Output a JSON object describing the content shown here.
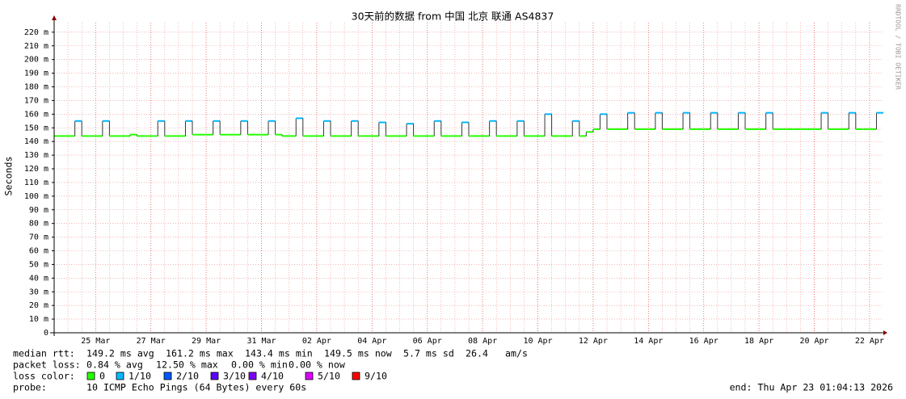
{
  "chart_data": {
    "type": "line",
    "title": "30天前的数据 from 中国 北京 联通 AS4837",
    "y_label": "Seconds",
    "categories": [
      null,
      null,
      null,
      null,
      null,
      null,
      "25 Mar",
      null,
      null,
      null,
      null,
      null,
      null,
      null,
      "27 Mar",
      null,
      null,
      null,
      null,
      null,
      null,
      null,
      "29 Mar",
      null,
      null,
      null,
      null,
      null,
      null,
      null,
      "31 Mar",
      null,
      null,
      null,
      null,
      null,
      null,
      null,
      "02 Apr",
      null,
      null,
      null,
      null,
      null,
      null,
      null,
      "04 Apr",
      null,
      null,
      null,
      null,
      null,
      null,
      null,
      "06 Apr",
      null,
      null,
      null,
      null,
      null,
      null,
      null,
      "08 Apr",
      null,
      null,
      null,
      null,
      null,
      null,
      null,
      "10 Apr",
      null,
      null,
      null,
      null,
      null,
      null,
      null,
      "12 Apr",
      null,
      null,
      null,
      null,
      null,
      null,
      null,
      "14 Apr",
      null,
      null,
      null,
      null,
      null,
      null,
      null,
      "16 Apr",
      null,
      null,
      null,
      null,
      null,
      null,
      null,
      "18 Apr",
      null,
      null,
      null,
      null,
      null,
      null,
      null,
      "20 Apr",
      null,
      null,
      null,
      null,
      null,
      null,
      null,
      "22 Apr",
      null
    ],
    "series": [
      {
        "name": "median rtt:",
        "values": [
          0.144,
          0.144,
          0.144,
          0.155,
          0.144,
          0.144,
          0.144,
          0.155,
          0.144,
          0.144,
          0.144,
          0.145,
          0.144,
          0.144,
          0.144,
          0.155,
          0.144,
          0.144,
          0.144,
          0.155,
          0.145,
          0.145,
          0.145,
          0.155,
          0.145,
          0.145,
          0.145,
          0.155,
          0.145,
          0.145,
          0.145,
          0.155,
          0.145,
          0.144,
          0.144,
          0.157,
          0.144,
          0.144,
          0.144,
          0.155,
          0.144,
          0.144,
          0.144,
          0.155,
          0.144,
          0.144,
          0.144,
          0.154,
          0.144,
          0.144,
          0.144,
          0.153,
          0.144,
          0.144,
          0.144,
          0.155,
          0.144,
          0.144,
          0.144,
          0.154,
          0.144,
          0.144,
          0.144,
          0.155,
          0.144,
          0.144,
          0.144,
          0.155,
          0.144,
          0.144,
          0.144,
          0.16,
          0.144,
          0.144,
          0.144,
          0.155,
          0.144,
          0.147,
          0.149,
          0.16,
          0.149,
          0.149,
          0.149,
          0.161,
          0.149,
          0.149,
          0.149,
          0.161,
          0.149,
          0.149,
          0.149,
          0.161,
          0.149,
          0.149,
          0.149,
          0.161,
          0.149,
          0.149,
          0.149,
          0.161,
          0.149,
          0.149,
          0.149,
          0.161,
          0.149,
          0.149,
          0.149,
          0.149,
          0.149,
          0.149,
          0.149,
          0.161,
          0.149,
          0.149,
          0.149,
          0.161,
          0.149,
          0.149,
          0.149,
          0.161
        ],
        "loss": [
          0,
          0,
          0,
          1,
          0,
          0,
          0,
          1,
          0,
          0,
          0,
          0,
          0,
          0,
          0,
          1,
          0,
          0,
          0,
          1,
          0,
          0,
          0,
          1,
          0,
          0,
          0,
          1,
          0,
          0,
          0,
          1,
          0,
          0,
          0,
          1,
          0,
          0,
          0,
          1,
          0,
          0,
          0,
          1,
          0,
          0,
          0,
          1,
          0,
          0,
          0,
          1,
          0,
          0,
          0,
          1,
          0,
          0,
          0,
          1,
          0,
          0,
          0,
          1,
          0,
          0,
          0,
          1,
          0,
          0,
          0,
          1,
          0,
          0,
          0,
          1,
          0,
          0,
          0,
          1,
          0,
          0,
          0,
          1,
          0,
          0,
          0,
          1,
          0,
          0,
          0,
          1,
          0,
          0,
          0,
          1,
          0,
          0,
          0,
          1,
          0,
          0,
          0,
          1,
          0,
          0,
          0,
          0,
          0,
          0,
          0,
          1,
          0,
          0,
          0,
          1,
          0,
          0,
          0,
          1
        ]
      }
    ],
    "ylim": [
      0,
      0.227
    ],
    "yticks": [
      0,
      {
        "value": 0.01,
        "label": "10 m"
      },
      {
        "value": 0.02,
        "label": "20 m"
      },
      {
        "value": 0.03,
        "label": "30 m"
      },
      {
        "value": 0.04,
        "label": "40 m"
      },
      {
        "value": 0.05,
        "label": "50 m"
      },
      {
        "value": 0.06,
        "label": "60 m"
      },
      {
        "value": 0.07,
        "label": "70 m"
      },
      {
        "value": 0.08,
        "label": "80 m"
      },
      {
        "value": 0.09,
        "label": "90 m"
      },
      {
        "value": 0.1,
        "label": "100 m"
      },
      {
        "value": 0.11,
        "label": "110 m"
      },
      {
        "value": 0.12,
        "label": "120 m"
      },
      {
        "value": 0.13,
        "label": "130 m"
      },
      {
        "value": 0.14,
        "label": "140 m"
      },
      {
        "value": 0.15,
        "label": "150 m"
      },
      {
        "value": 0.16,
        "label": "160 m"
      },
      {
        "value": 0.17,
        "label": "170 m"
      },
      {
        "value": 0.18,
        "label": "180 m"
      },
      {
        "value": 0.19,
        "label": "190 m"
      },
      {
        "value": 0.2,
        "label": "200 m"
      },
      {
        "value": 0.21,
        "label": "210 m"
      },
      {
        "value": 0.22,
        "label": "220 m"
      }
    ],
    "grid": true,
    "legend_title": "loss color:",
    "loss_colors": [
      {
        "name": "0",
        "color": "#26ff00"
      },
      {
        "name": "1/10",
        "color": "#00b8ff"
      },
      {
        "name": "2/10",
        "color": "#0059ff"
      },
      {
        "name": "3/10",
        "color": "#5e00ff"
      },
      {
        "name": "4/10",
        "color": "#7e00ff"
      },
      {
        "name": "5/10",
        "color": "#dd00ff"
      },
      {
        "name": "9/10",
        "color": "#ff0000"
      }
    ]
  },
  "footer": {
    "median": [
      "149.2 ms avg",
      "161.2 ms max",
      "143.4 ms min",
      "149.5 ms now",
      "5.7 ms sd",
      "26.4",
      "am/s"
    ],
    "packet_loss_label": "packet loss:",
    "packet_loss": [
      "0.84 % avg",
      "12.50 % max",
      "0.00 % min",
      "0.00 % now"
    ],
    "probe_label": "probe:",
    "probe": "10 ICMP Echo Pings (64 Bytes) every 60s",
    "end": "end: Thu Apr 23 01:04:13 2026"
  },
  "credit": "RRDTOOL / TOBI OETIKER"
}
